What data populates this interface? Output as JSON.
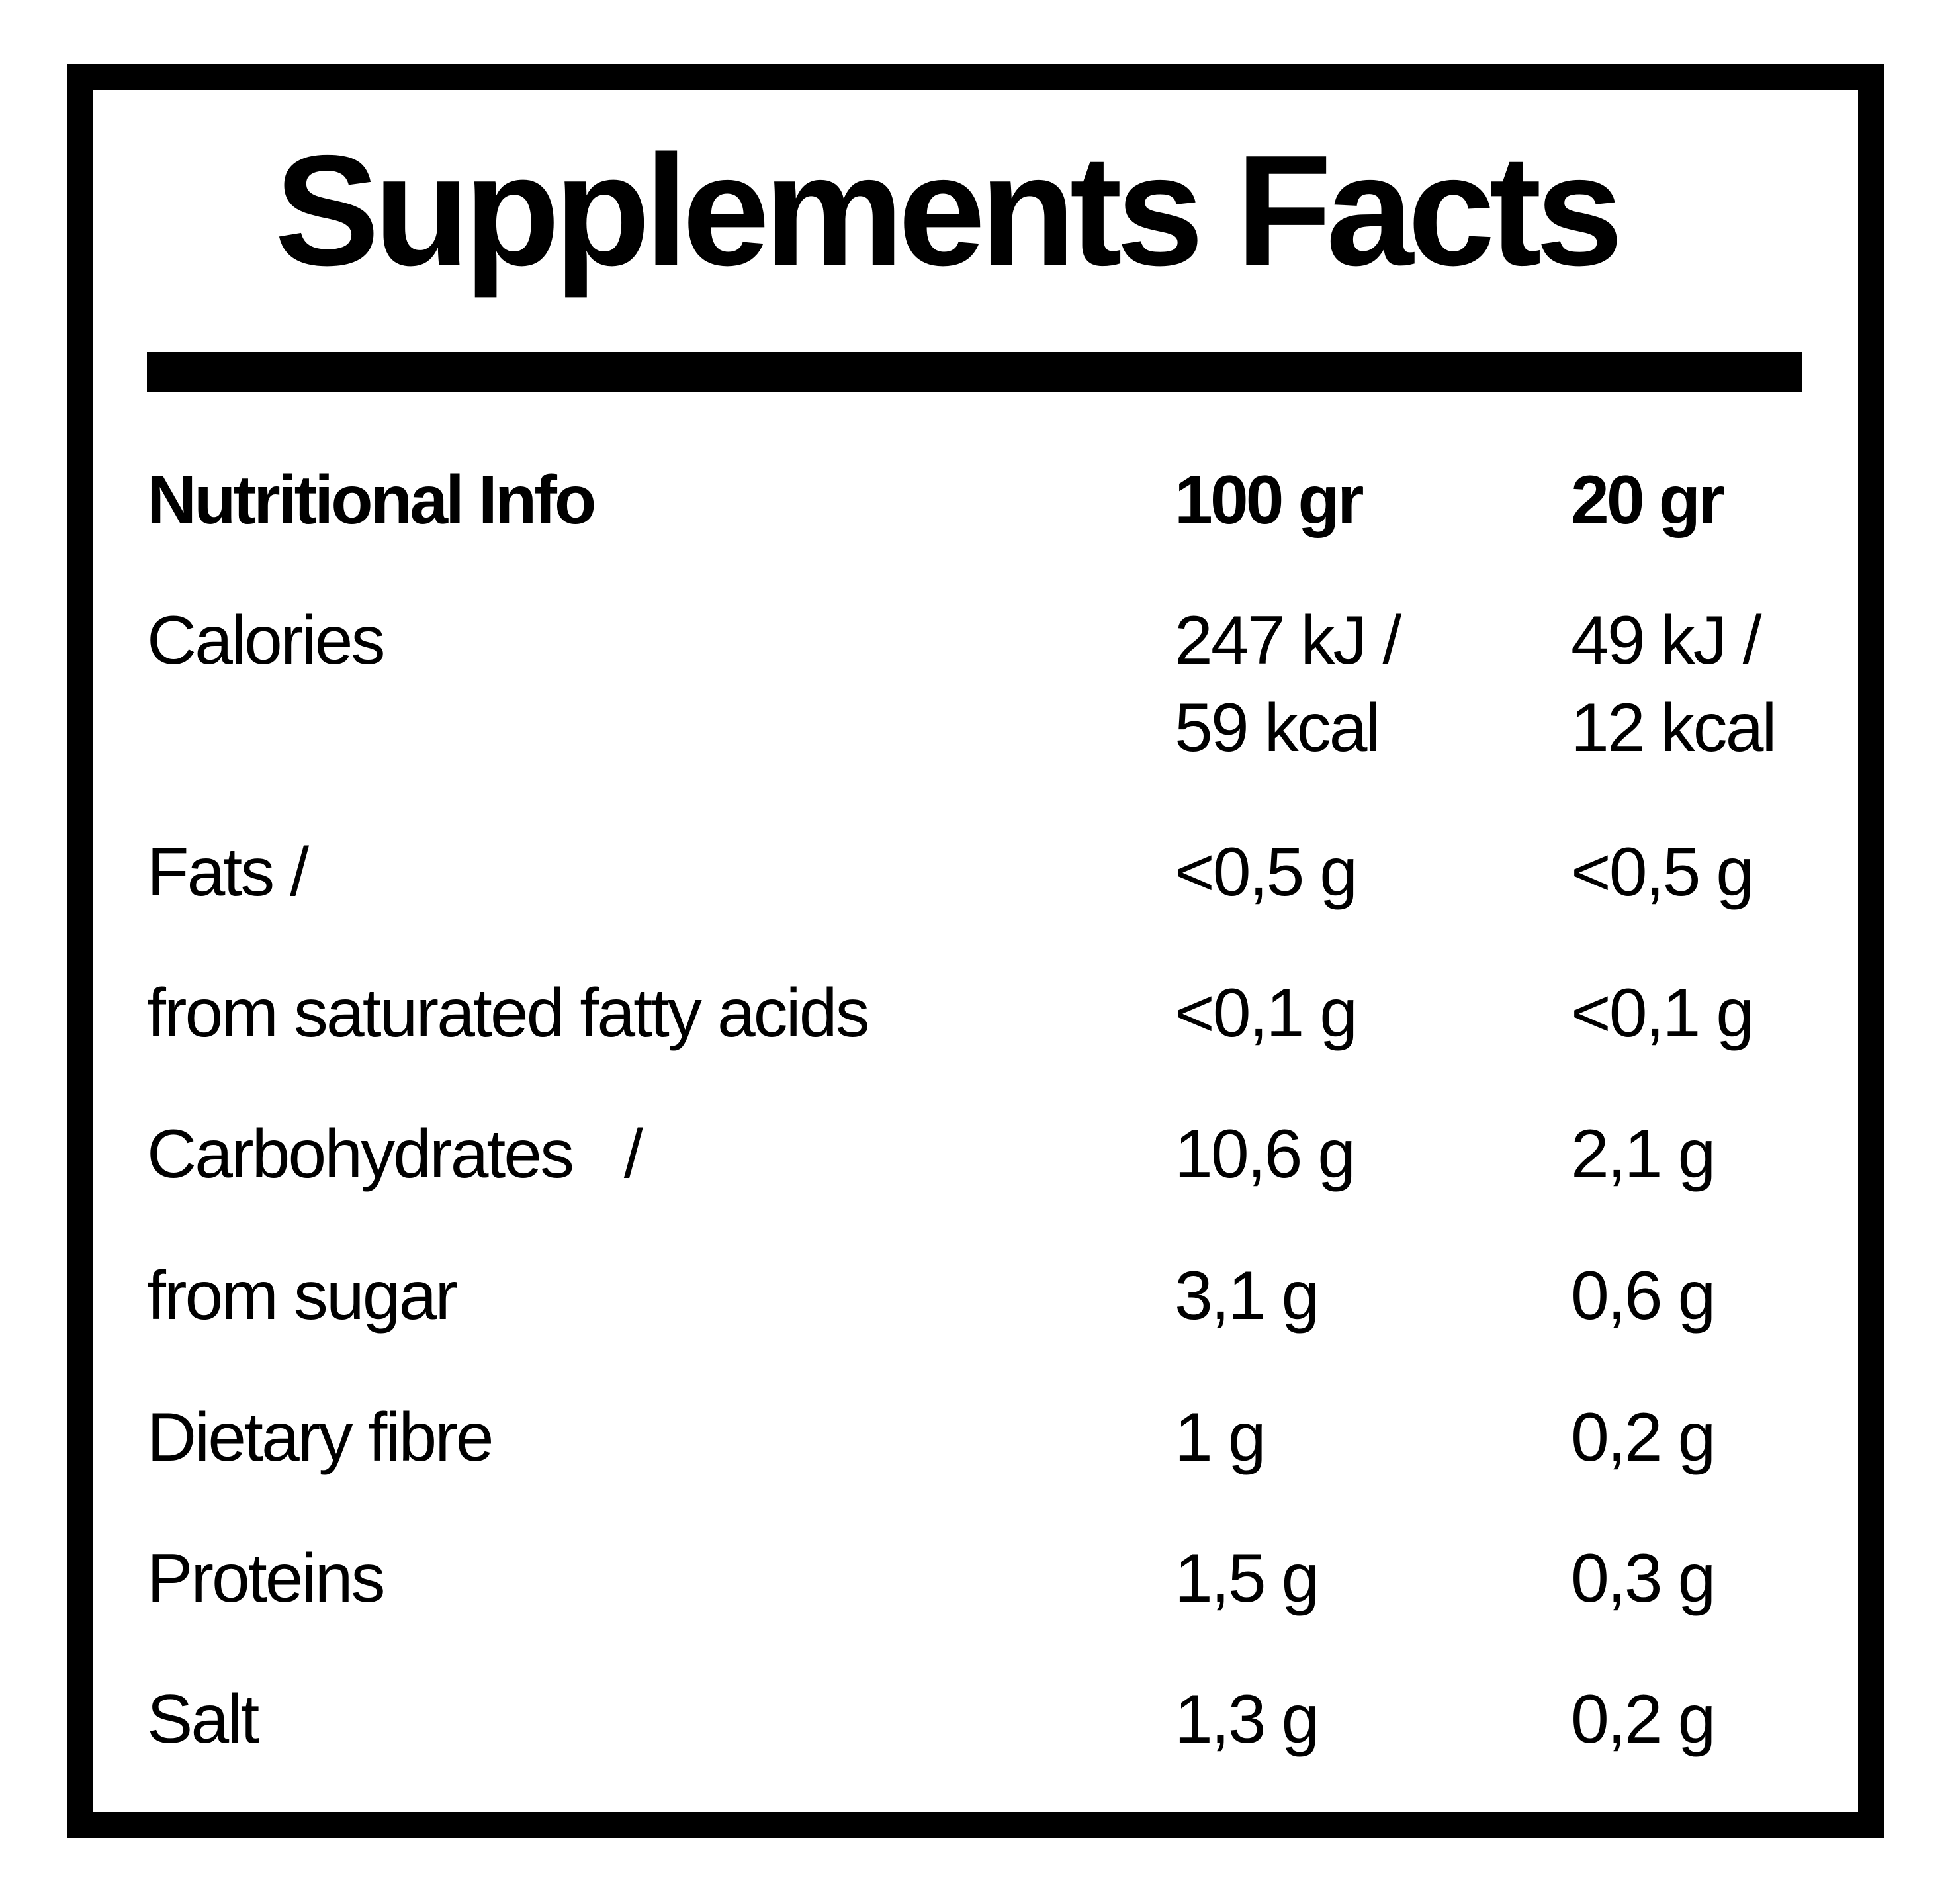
{
  "title": "Supplements Facts",
  "table": {
    "header": {
      "label": "Nutritional Info",
      "col1": "100 gr",
      "col2": "20 gr"
    },
    "rows": [
      {
        "label": "Calories",
        "col1_line1": "247 kJ /",
        "col1_line2": "59 kcal",
        "col2_line1": "49 kJ /",
        "col2_line2": "12 kcal"
      },
      {
        "label": "Fats /",
        "col1": "<0,5 g",
        "col2": "<0,5 g"
      },
      {
        "label": "from saturated fatty acids",
        "col1": "<0,1 g",
        "col2": "<0,1 g"
      },
      {
        "label": "Carbohydrates   /",
        "col1": "10,6 g",
        "col2": "2,1 g"
      },
      {
        "label": "from sugar",
        "col1": "3,1 g",
        "col2": "0,6 g"
      },
      {
        "label": "Dietary fibre",
        "col1": "1 g",
        "col2": "0,2 g"
      },
      {
        "label": "Proteins",
        "col1": "1,5 g",
        "col2": "0,3 g"
      },
      {
        "label": "Salt",
        "col1": "1,3 g",
        "col2": "0,2 g"
      }
    ]
  }
}
